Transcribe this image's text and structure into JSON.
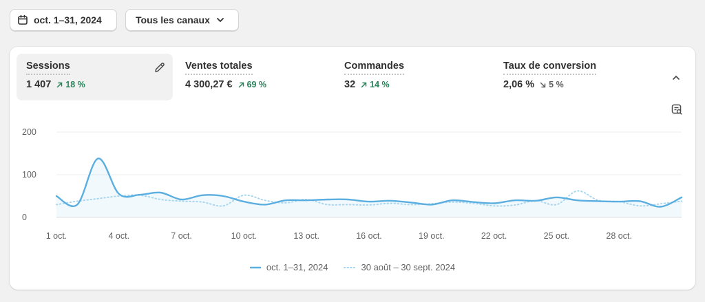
{
  "filters": {
    "date_range": "oct. 1–31, 2024",
    "channel": "Tous les canaux"
  },
  "metrics": [
    {
      "label": "Sessions",
      "value": "1 407",
      "delta": "18 %",
      "trend": "up"
    },
    {
      "label": "Ventes totales",
      "value": "4 300,27 €",
      "delta": "69 %",
      "trend": "up"
    },
    {
      "label": "Commandes",
      "value": "32",
      "delta": "14 %",
      "trend": "up"
    },
    {
      "label": "Taux de conversion",
      "value": "2,06 %",
      "delta": "5 %",
      "trend": "down"
    }
  ],
  "colors": {
    "primary": "#5aaee0",
    "comparison": "#a9d6ef",
    "up": "#29845a",
    "down": "#616161"
  },
  "icons": [
    "calendar-icon",
    "chevron-down-icon",
    "pencil-icon",
    "arrow-up-right-icon",
    "arrow-down-right-icon",
    "chevron-up-icon",
    "table-search-icon"
  ],
  "chart_data": {
    "type": "line",
    "y_ticks": [
      "0",
      "100",
      "200"
    ],
    "ylim": [
      0,
      200
    ],
    "x_tick_labels": [
      "1 oct.",
      "4 oct.",
      "7 oct.",
      "10 oct.",
      "13 oct.",
      "16 oct.",
      "19 oct.",
      "22 oct.",
      "25 oct.",
      "28 oct."
    ],
    "x_tick_days": [
      1,
      4,
      7,
      10,
      13,
      16,
      19,
      22,
      25,
      28
    ],
    "x_days": [
      1,
      2,
      3,
      4,
      5,
      6,
      7,
      8,
      9,
      10,
      11,
      12,
      13,
      14,
      15,
      16,
      17,
      18,
      19,
      20,
      21,
      22,
      23,
      24,
      25,
      26,
      27,
      28,
      29,
      30,
      31
    ],
    "grid": true,
    "legend_position": "bottom",
    "series": [
      {
        "name": "oct. 1–31, 2024",
        "style": "solid",
        "values": [
          50,
          30,
          138,
          55,
          53,
          58,
          42,
          52,
          50,
          37,
          30,
          40,
          40,
          42,
          42,
          37,
          39,
          35,
          30,
          40,
          36,
          33,
          40,
          39,
          47,
          40,
          38,
          37,
          38,
          25,
          47
        ]
      },
      {
        "name": "30 août – 30 sept. 2024",
        "style": "dotted",
        "values": [
          30,
          38,
          44,
          50,
          52,
          42,
          38,
          36,
          27,
          52,
          40,
          34,
          42,
          30,
          30,
          29,
          33,
          30,
          32,
          36,
          33,
          27,
          29,
          39,
          30,
          62,
          40,
          37,
          27,
          32,
          38
        ]
      }
    ]
  }
}
